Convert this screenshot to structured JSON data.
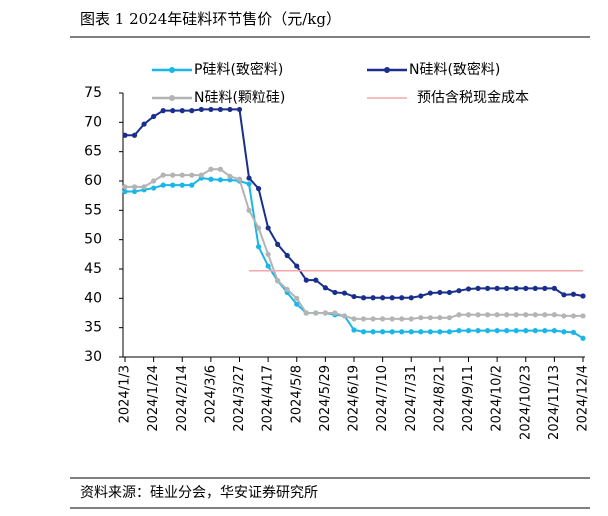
{
  "chart_data": {
    "type": "line",
    "title": "图表 1  2024年硅料环节售价（元/kg）",
    "source": "资料来源：硅业分会，华安证券研究所",
    "categories": [
      "2024/1/3",
      null,
      null,
      "2024/1/24",
      null,
      null,
      "2024/2/14",
      null,
      null,
      "2024/3/6",
      null,
      null,
      "2024/3/27",
      null,
      null,
      "2024/4/17",
      null,
      null,
      "2024/5/8",
      null,
      null,
      "2024/5/29",
      null,
      null,
      "2024/6/19",
      null,
      null,
      "2024/7/10",
      null,
      null,
      "2024/7/31",
      null,
      null,
      "2024/8/21",
      null,
      null,
      "2024/9/11",
      null,
      null,
      "2024/10/2",
      null,
      null,
      "2024/10/23",
      null,
      null,
      "2024/11/13",
      null,
      null,
      "2024/12/4"
    ],
    "series": [
      {
        "name": "P硅料(致密料)",
        "color": "#1ab6e8",
        "markers": true,
        "values": [
          58.2,
          58.2,
          58.5,
          58.8,
          59.3,
          59.3,
          59.3,
          59.3,
          60.5,
          60.3,
          60.2,
          60.2,
          60,
          59.5,
          48.8,
          45.5,
          43,
          41,
          39,
          37.5,
          37.5,
          37.5,
          37.2,
          37,
          34.6,
          34.3,
          34.3,
          34.3,
          34.3,
          34.3,
          34.3,
          34.3,
          34.3,
          34.3,
          34.3,
          34.5,
          34.5,
          34.5,
          34.5,
          34.5,
          34.5,
          34.5,
          34.5,
          34.5,
          34.5,
          34.5,
          34.3,
          34.2,
          33.2
        ]
      },
      {
        "name": "N硅料(致密料)",
        "color": "#1a2f8c",
        "markers": true,
        "values": [
          67.8,
          67.8,
          69.7,
          71,
          72,
          72,
          72,
          72,
          72.2,
          72.2,
          72.2,
          72.2,
          72.2,
          60.5,
          58.7,
          52,
          49.2,
          47.3,
          45.5,
          43.1,
          43.1,
          41.8,
          41,
          40.9,
          40.3,
          40.1,
          40.1,
          40.1,
          40.1,
          40.1,
          40.1,
          40.4,
          40.9,
          41,
          41,
          41.3,
          41.6,
          41.7,
          41.7,
          41.7,
          41.7,
          41.7,
          41.7,
          41.7,
          41.7,
          41.7,
          40.6,
          40.7,
          40.4
        ]
      },
      {
        "name": "N硅料(颗粒硅)",
        "color": "#b4b4b4",
        "markers": true,
        "values": [
          59,
          59,
          59,
          60,
          61,
          61,
          61,
          61,
          61,
          62,
          62,
          60.8,
          60.3,
          55,
          52,
          47.5,
          43,
          41.5,
          40,
          37.5,
          37.5,
          37.5,
          37.5,
          37,
          36.5,
          36.5,
          36.5,
          36.5,
          36.5,
          36.5,
          36.5,
          36.7,
          36.7,
          36.7,
          36.7,
          37.2,
          37.2,
          37.2,
          37.2,
          37.2,
          37.2,
          37.2,
          37.2,
          37.2,
          37.2,
          37.2,
          37,
          37,
          37
        ]
      },
      {
        "name": "预估含税现金成本",
        "color": "#f4a8a8",
        "markers": false,
        "values": [
          null,
          null,
          null,
          null,
          null,
          null,
          null,
          null,
          null,
          null,
          null,
          null,
          null,
          44.7,
          44.7,
          44.7,
          44.7,
          44.7,
          44.7,
          44.7,
          44.7,
          44.7,
          44.7,
          44.7,
          44.7,
          44.7,
          44.7,
          44.7,
          44.7,
          44.7,
          44.7,
          44.7,
          44.7,
          44.7,
          44.7,
          44.7,
          44.7,
          44.7,
          44.7,
          44.7,
          44.7,
          44.7,
          44.7,
          44.7,
          44.7,
          44.7,
          44.7,
          44.7,
          44.7
        ]
      }
    ],
    "ylim": [
      30,
      75
    ],
    "yticks": [
      30,
      35,
      40,
      45,
      50,
      55,
      60,
      65,
      70,
      75
    ]
  }
}
